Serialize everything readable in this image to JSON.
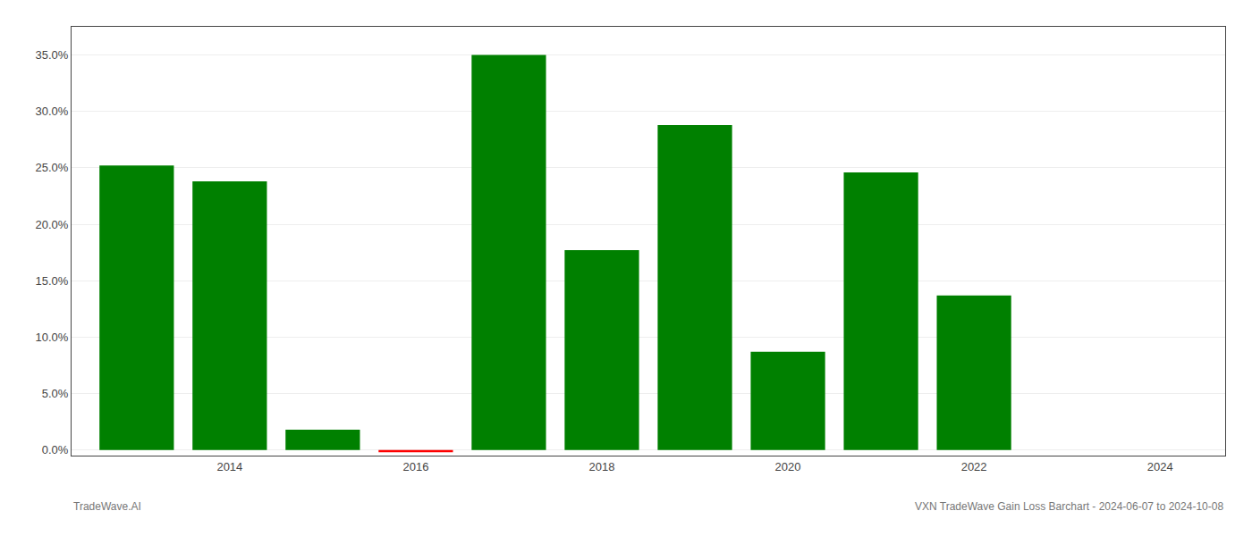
{
  "chart_data": {
    "type": "bar",
    "x": [
      2013,
      2014,
      2015,
      2016,
      2017,
      2018,
      2019,
      2020,
      2021,
      2022,
      2023
    ],
    "values": [
      0.252,
      0.238,
      0.018,
      -0.002,
      0.35,
      0.177,
      0.288,
      0.087,
      0.246,
      0.137,
      0.0
    ],
    "colors": [
      "#008000",
      "#008000",
      "#008000",
      "#ff0000",
      "#008000",
      "#008000",
      "#008000",
      "#008000",
      "#008000",
      "#008000",
      "#008000"
    ],
    "xlim": [
      2012.3,
      2024.7
    ],
    "xticks": [
      2014,
      2016,
      2018,
      2020,
      2022,
      2024
    ],
    "ylim": [
      -0.005,
      0.375
    ],
    "yticks": [
      {
        "value": 0.0,
        "label": "0.0%"
      },
      {
        "value": 0.05,
        "label": "5.0%"
      },
      {
        "value": 0.1,
        "label": "10.0%"
      },
      {
        "value": 0.15,
        "label": "15.0%"
      },
      {
        "value": 0.2,
        "label": "20.0%"
      },
      {
        "value": 0.25,
        "label": "25.0%"
      },
      {
        "value": 0.3,
        "label": "30.0%"
      },
      {
        "value": 0.35,
        "label": "35.0%"
      }
    ],
    "grid": true,
    "annotations": [
      "TradeWave.AI",
      "VXN TradeWave Gain Loss Barchart - 2024-06-07 to 2024-10-08"
    ]
  }
}
